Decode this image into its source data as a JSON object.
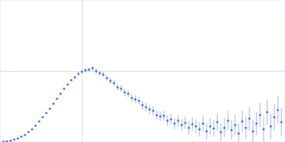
{
  "chart_data": {
    "type": "scatter",
    "x": [
      0.05,
      0.1,
      0.15,
      0.2,
      0.25,
      0.3,
      0.35,
      0.4,
      0.45,
      0.5,
      0.55,
      0.6,
      0.65,
      0.7,
      0.75,
      0.8,
      0.85,
      0.9,
      0.95,
      1.0,
      1.05,
      1.1,
      1.15,
      1.2,
      1.25,
      1.3,
      1.35,
      1.4,
      1.45,
      1.5,
      1.55,
      1.6,
      1.65,
      1.7,
      1.75,
      1.8,
      1.85,
      1.9,
      1.95,
      2.0,
      2.05,
      2.1,
      2.15,
      2.2,
      2.25,
      2.3,
      2.35,
      2.4,
      2.45,
      2.5,
      2.55,
      2.6,
      2.65,
      2.7,
      2.75,
      2.8,
      2.85,
      2.9,
      2.95,
      3.0,
      3.05,
      3.1,
      3.15,
      3.2,
      3.25,
      3.3,
      3.35,
      3.4,
      3.45,
      3.5,
      3.55,
      3.6,
      3.65,
      3.7,
      3.75,
      3.8,
      3.85,
      3.9,
      3.95
    ],
    "values": [
      0.005,
      0.01,
      0.02,
      0.035,
      0.05,
      0.075,
      0.1,
      0.14,
      0.18,
      0.23,
      0.29,
      0.35,
      0.41,
      0.47,
      0.54,
      0.61,
      0.68,
      0.75,
      0.81,
      0.87,
      0.91,
      0.96,
      0.99,
      1.01,
      1.02,
      1.04,
      1.0,
      0.97,
      0.95,
      0.9,
      0.86,
      0.83,
      0.77,
      0.75,
      0.7,
      0.68,
      0.62,
      0.6,
      0.58,
      0.52,
      0.49,
      0.46,
      0.44,
      0.38,
      0.36,
      0.37,
      0.3,
      0.32,
      0.26,
      0.3,
      0.24,
      0.27,
      0.2,
      0.25,
      0.22,
      0.18,
      0.26,
      0.15,
      0.22,
      0.19,
      0.28,
      0.14,
      0.2,
      0.3,
      0.17,
      0.24,
      0.12,
      0.29,
      0.2,
      0.33,
      0.15,
      0.26,
      0.38,
      0.18,
      0.42,
      0.22,
      0.35,
      0.45,
      0.28
    ],
    "errors": [
      0.003,
      0.003,
      0.003,
      0.004,
      0.004,
      0.005,
      0.005,
      0.006,
      0.006,
      0.007,
      0.008,
      0.009,
      0.01,
      0.011,
      0.012,
      0.013,
      0.015,
      0.016,
      0.018,
      0.02,
      0.022,
      0.024,
      0.026,
      0.028,
      0.03,
      0.032,
      0.034,
      0.036,
      0.038,
      0.04,
      0.042,
      0.044,
      0.046,
      0.048,
      0.05,
      0.052,
      0.054,
      0.056,
      0.058,
      0.06,
      0.062,
      0.064,
      0.066,
      0.068,
      0.07,
      0.072,
      0.074,
      0.076,
      0.078,
      0.08,
      0.084,
      0.088,
      0.092,
      0.096,
      0.1,
      0.104,
      0.108,
      0.112,
      0.116,
      0.12,
      0.124,
      0.128,
      0.132,
      0.136,
      0.14,
      0.144,
      0.148,
      0.152,
      0.156,
      0.16,
      0.164,
      0.168,
      0.172,
      0.176,
      0.18,
      0.184,
      0.188,
      0.192,
      0.196
    ],
    "color": "#3a66c4",
    "marker": "circle",
    "xlim": [
      0,
      4
    ],
    "ylim": [
      0,
      2
    ],
    "xticks": [
      1.15
    ],
    "yticks": [
      1
    ],
    "grid": true,
    "tick_labels": false
  }
}
